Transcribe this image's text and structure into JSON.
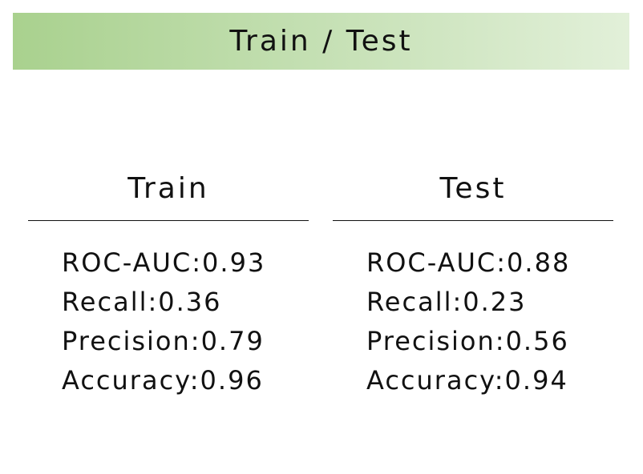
{
  "title": "Train / Test",
  "columns": [
    {
      "header": "Train",
      "metrics": [
        "ROC-AUC:0.93",
        "Recall:0.36",
        "Precision:0.79",
        "Accuracy:0.96"
      ]
    },
    {
      "header": "Test",
      "metrics": [
        "ROC-AUC:0.88",
        "Recall:0.23",
        "Precision:0.56",
        "Accuracy:0.94"
      ]
    }
  ],
  "colors": {
    "banner_gradient_start": "#a9d18e",
    "banner_gradient_mid": "#c5e0b4",
    "banner_gradient_end": "#e2f0d9",
    "text": "#111111"
  }
}
